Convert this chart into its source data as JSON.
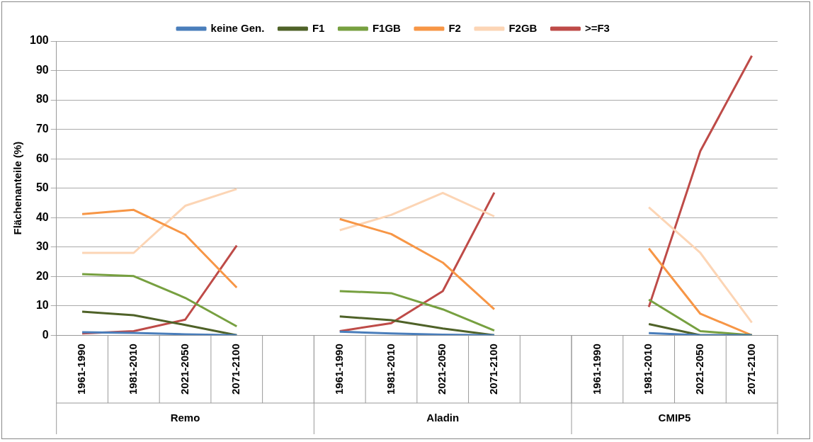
{
  "chart_data": {
    "type": "line",
    "ylabel": "Flächenanteile (%)",
    "categories": [
      "1961-1990",
      "1981-2010",
      "2021-2050",
      "2071-2100",
      null,
      "1961-1990",
      "1981-2010",
      "2021-2050",
      "2071-2100",
      null,
      "1961-1990",
      "1981-2010",
      "2021-2050",
      "2071-2100"
    ],
    "annotations": [
      "Remo",
      "Aladin",
      "CMIP5"
    ],
    "ylim": [
      0,
      100
    ],
    "yticks": [
      0,
      10,
      20,
      30,
      40,
      50,
      60,
      70,
      80,
      90,
      100
    ],
    "grid": "y",
    "legend": "top",
    "marker": "none",
    "series": [
      {
        "name": "keine Gen.",
        "color": "#4a7ebb",
        "values": [
          1,
          0.8,
          0.3,
          0,
          null,
          1.2,
          0.6,
          0.2,
          0,
          null,
          null,
          0.7,
          0,
          0
        ]
      },
      {
        "name": "F1",
        "color": "#4f6228",
        "values": [
          8,
          6.8,
          3.5,
          0,
          null,
          6.4,
          5.1,
          2.3,
          0,
          null,
          null,
          3.8,
          0,
          0
        ]
      },
      {
        "name": "F1GB",
        "color": "#77a040",
        "values": [
          20.8,
          20.1,
          12.7,
          3,
          null,
          15,
          14.3,
          8.8,
          1.6,
          null,
          null,
          12.1,
          1.4,
          0
        ]
      },
      {
        "name": "F2",
        "color": "#f79646",
        "values": [
          41.2,
          42.6,
          34.2,
          16.2,
          null,
          39.5,
          34.4,
          24.7,
          8.8,
          null,
          null,
          29.5,
          7.3,
          0
        ]
      },
      {
        "name": "F2GB",
        "color": "#fcd5b5",
        "values": [
          28,
          28,
          44,
          49.7,
          null,
          35.7,
          40.9,
          48.4,
          40.4,
          null,
          null,
          43.5,
          28,
          4.3
        ]
      },
      {
        "name": ">=F3",
        "color": "#be4b48",
        "values": [
          0.6,
          1.4,
          5.3,
          30.5,
          null,
          1.4,
          4.1,
          15,
          48.5,
          null,
          null,
          9.6,
          62.6,
          95
        ]
      }
    ]
  }
}
